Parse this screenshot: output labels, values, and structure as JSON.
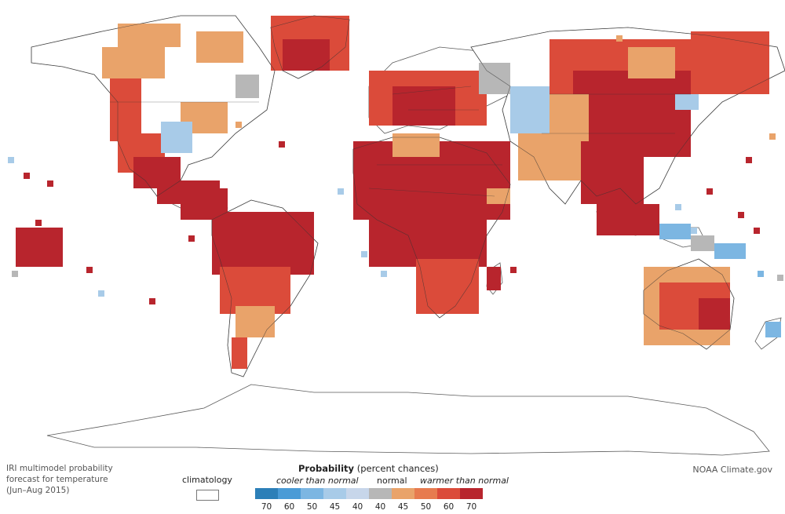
{
  "caption": {
    "line1": "IRI multimodel probability",
    "line2": "forecast for temperature",
    "line3": "(Jun–Aug 2015)"
  },
  "credit": "NOAA Climate.gov",
  "legend": {
    "climatology_label": "climatology",
    "probability_title_bold": "Probability",
    "probability_title_rest": "(percent chances)",
    "cooler_label": "cooler than normal",
    "normal_label": "normal",
    "warmer_label": "warmer than normal",
    "ticks": [
      "70",
      "60",
      "50",
      "45",
      "40",
      "40",
      "45",
      "50",
      "60",
      "70"
    ],
    "colors": [
      "#2c7fb8",
      "#4a9bd6",
      "#7cb6e2",
      "#a8cbe8",
      "#c7d6ea",
      "#b7b7b7",
      "#e9a36a",
      "#e77b4f",
      "#db4b3a",
      "#b8252d"
    ]
  },
  "colors": {
    "land": "#ffffff",
    "coast": "#5a5a5a",
    "warm_high": "#b8252d",
    "warm_mid": "#db4b3a",
    "warm_low": "#e9a36a",
    "cool_low": "#a8cbe8",
    "cool_mid": "#7cb6e2",
    "normal": "#b7b7b7"
  }
}
